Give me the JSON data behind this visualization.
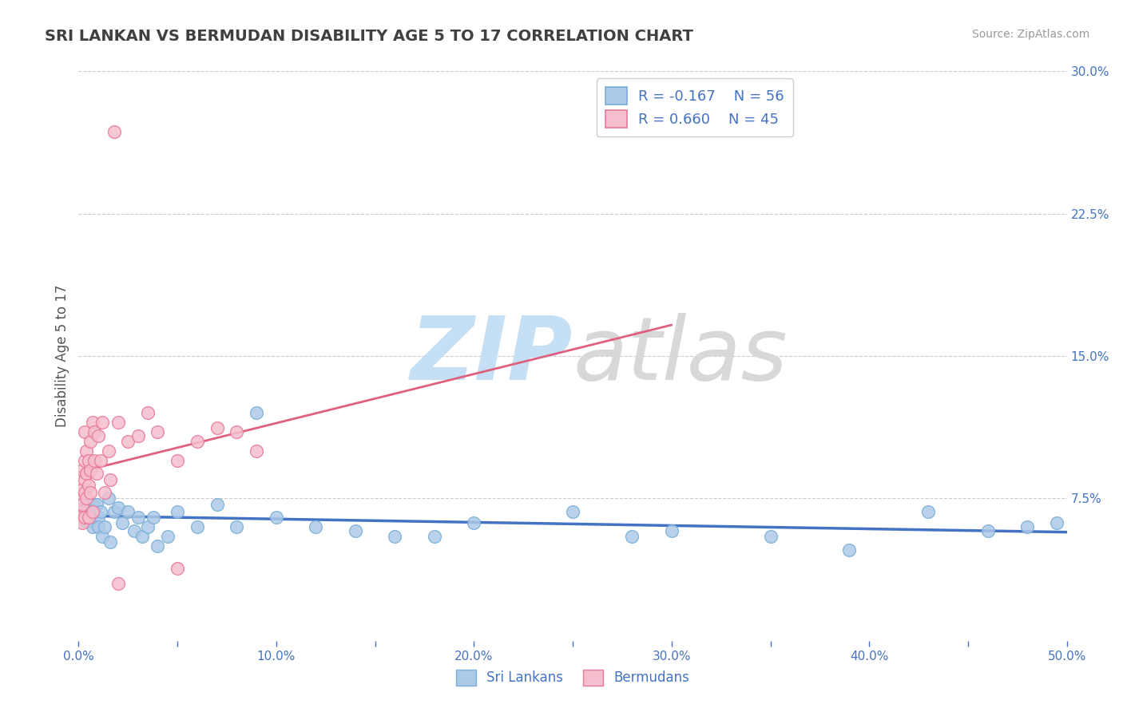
{
  "title": "SRI LANKAN VS BERMUDAN DISABILITY AGE 5 TO 17 CORRELATION CHART",
  "source": "Source: ZipAtlas.com",
  "ylabel": "Disability Age 5 to 17",
  "xlim": [
    0.0,
    0.5
  ],
  "ylim": [
    0.0,
    0.3
  ],
  "xticks": [
    0.0,
    0.05,
    0.1,
    0.15,
    0.2,
    0.25,
    0.3,
    0.35,
    0.4,
    0.45,
    0.5
  ],
  "xticklabels": [
    "0.0%",
    "",
    "10.0%",
    "",
    "20.0%",
    "",
    "30.0%",
    "",
    "40.0%",
    "",
    "50.0%"
  ],
  "yticks_right": [
    0.075,
    0.15,
    0.225,
    0.3
  ],
  "yticklabels_right": [
    "7.5%",
    "15.0%",
    "22.5%",
    "30.0%"
  ],
  "series1_label": "Sri Lankans",
  "series1_color": "#adc9e8",
  "series1_edge": "#7aaed6",
  "series1_R": -0.167,
  "series1_N": 56,
  "series1_line_color": "#4472c4",
  "series2_label": "Bermudans",
  "series2_color": "#f5bece",
  "series2_edge": "#e87898",
  "series2_R": 0.66,
  "series2_N": 45,
  "series2_line_color": "#e06080",
  "background_color": "#ffffff",
  "grid_color": "#cccccc",
  "title_color": "#404040",
  "axis_label_color": "#555555",
  "tick_color": "#4472c4",
  "legend_R1": "R = -0.167",
  "legend_N1": "N = 56",
  "legend_R2": "R = 0.660",
  "legend_N2": "N = 45",
  "sri_lankans_x": [
    0.001,
    0.001,
    0.002,
    0.002,
    0.003,
    0.003,
    0.003,
    0.004,
    0.004,
    0.005,
    0.005,
    0.005,
    0.006,
    0.006,
    0.007,
    0.007,
    0.008,
    0.009,
    0.01,
    0.01,
    0.011,
    0.012,
    0.013,
    0.015,
    0.016,
    0.018,
    0.02,
    0.022,
    0.025,
    0.028,
    0.03,
    0.032,
    0.035,
    0.038,
    0.04,
    0.045,
    0.05,
    0.06,
    0.07,
    0.08,
    0.09,
    0.1,
    0.12,
    0.14,
    0.16,
    0.18,
    0.2,
    0.25,
    0.28,
    0.3,
    0.35,
    0.39,
    0.43,
    0.46,
    0.48,
    0.495
  ],
  "sri_lankans_y": [
    0.072,
    0.068,
    0.065,
    0.07,
    0.066,
    0.073,
    0.063,
    0.07,
    0.067,
    0.072,
    0.063,
    0.068,
    0.065,
    0.067,
    0.06,
    0.072,
    0.068,
    0.072,
    0.065,
    0.06,
    0.068,
    0.055,
    0.06,
    0.075,
    0.052,
    0.068,
    0.07,
    0.062,
    0.068,
    0.058,
    0.065,
    0.055,
    0.06,
    0.065,
    0.05,
    0.055,
    0.068,
    0.06,
    0.072,
    0.06,
    0.12,
    0.065,
    0.06,
    0.058,
    0.055,
    0.055,
    0.062,
    0.068,
    0.055,
    0.058,
    0.055,
    0.048,
    0.068,
    0.058,
    0.06,
    0.062
  ],
  "bermudans_x": [
    0.001,
    0.001,
    0.001,
    0.002,
    0.002,
    0.002,
    0.002,
    0.003,
    0.003,
    0.003,
    0.003,
    0.003,
    0.004,
    0.004,
    0.004,
    0.005,
    0.005,
    0.005,
    0.006,
    0.006,
    0.006,
    0.007,
    0.007,
    0.008,
    0.008,
    0.009,
    0.01,
    0.011,
    0.012,
    0.013,
    0.015,
    0.016,
    0.018,
    0.02,
    0.025,
    0.03,
    0.035,
    0.04,
    0.05,
    0.06,
    0.07,
    0.08,
    0.09,
    0.05,
    0.02
  ],
  "bermudans_y": [
    0.068,
    0.065,
    0.075,
    0.08,
    0.072,
    0.09,
    0.062,
    0.085,
    0.078,
    0.095,
    0.065,
    0.11,
    0.088,
    0.075,
    0.1,
    0.095,
    0.082,
    0.065,
    0.105,
    0.078,
    0.09,
    0.115,
    0.068,
    0.095,
    0.11,
    0.088,
    0.108,
    0.095,
    0.115,
    0.078,
    0.1,
    0.085,
    0.268,
    0.115,
    0.105,
    0.108,
    0.12,
    0.11,
    0.095,
    0.105,
    0.112,
    0.11,
    0.1,
    0.038,
    0.03
  ]
}
